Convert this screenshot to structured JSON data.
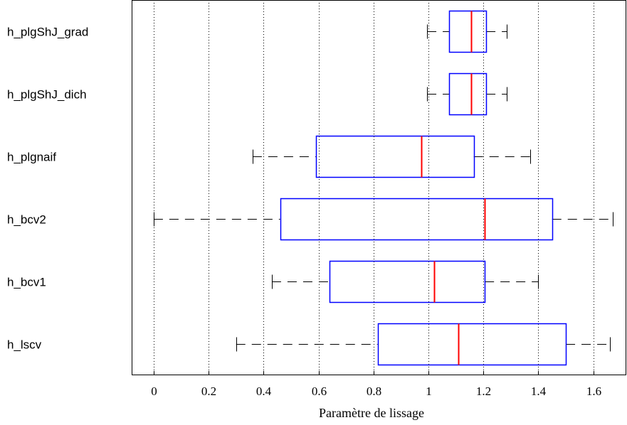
{
  "chart_data": {
    "type": "boxplot",
    "orientation": "horizontal",
    "title": "",
    "xlabel": "Paramètre de lissage",
    "ylabel": "",
    "xlim": [
      -0.08,
      1.72
    ],
    "xticks": [
      0,
      0.2,
      0.4,
      0.6,
      0.8,
      1,
      1.2,
      1.4,
      1.6
    ],
    "xtick_labels": [
      "0",
      "0.2",
      "0.4",
      "0.6",
      "0.8",
      "1",
      "1.2",
      "1.4",
      "1.6"
    ],
    "grid": "vertical dotted",
    "colors": {
      "box": "#0000ff",
      "median": "#ff0000",
      "whisker": "#000000"
    },
    "categories": [
      "h_plgShJ_grad",
      "h_plgShJ_dich",
      "h_plgnaif",
      "h_bcv2",
      "h_bcv1",
      "h_lscv"
    ],
    "boxes": [
      {
        "label": "h_plgShJ_grad",
        "whislo": 0.995,
        "q1": 1.075,
        "med": 1.155,
        "q3": 1.21,
        "whishi": 1.285
      },
      {
        "label": "h_plgShJ_dich",
        "whislo": 0.995,
        "q1": 1.075,
        "med": 1.155,
        "q3": 1.21,
        "whishi": 1.285
      },
      {
        "label": "h_plgnaif",
        "whislo": 0.36,
        "q1": 0.59,
        "med": 0.975,
        "q3": 1.165,
        "whishi": 1.37
      },
      {
        "label": "h_bcv2",
        "whislo": 0.0,
        "q1": 0.46,
        "med": 1.205,
        "q3": 1.45,
        "whishi": 1.67
      },
      {
        "label": "h_bcv1",
        "whislo": 0.43,
        "q1": 0.64,
        "med": 1.02,
        "q3": 1.205,
        "whishi": 1.4
      },
      {
        "label": "h_lscv",
        "whislo": 0.3,
        "q1": 0.815,
        "med": 1.11,
        "q3": 1.5,
        "whishi": 1.66
      }
    ]
  }
}
